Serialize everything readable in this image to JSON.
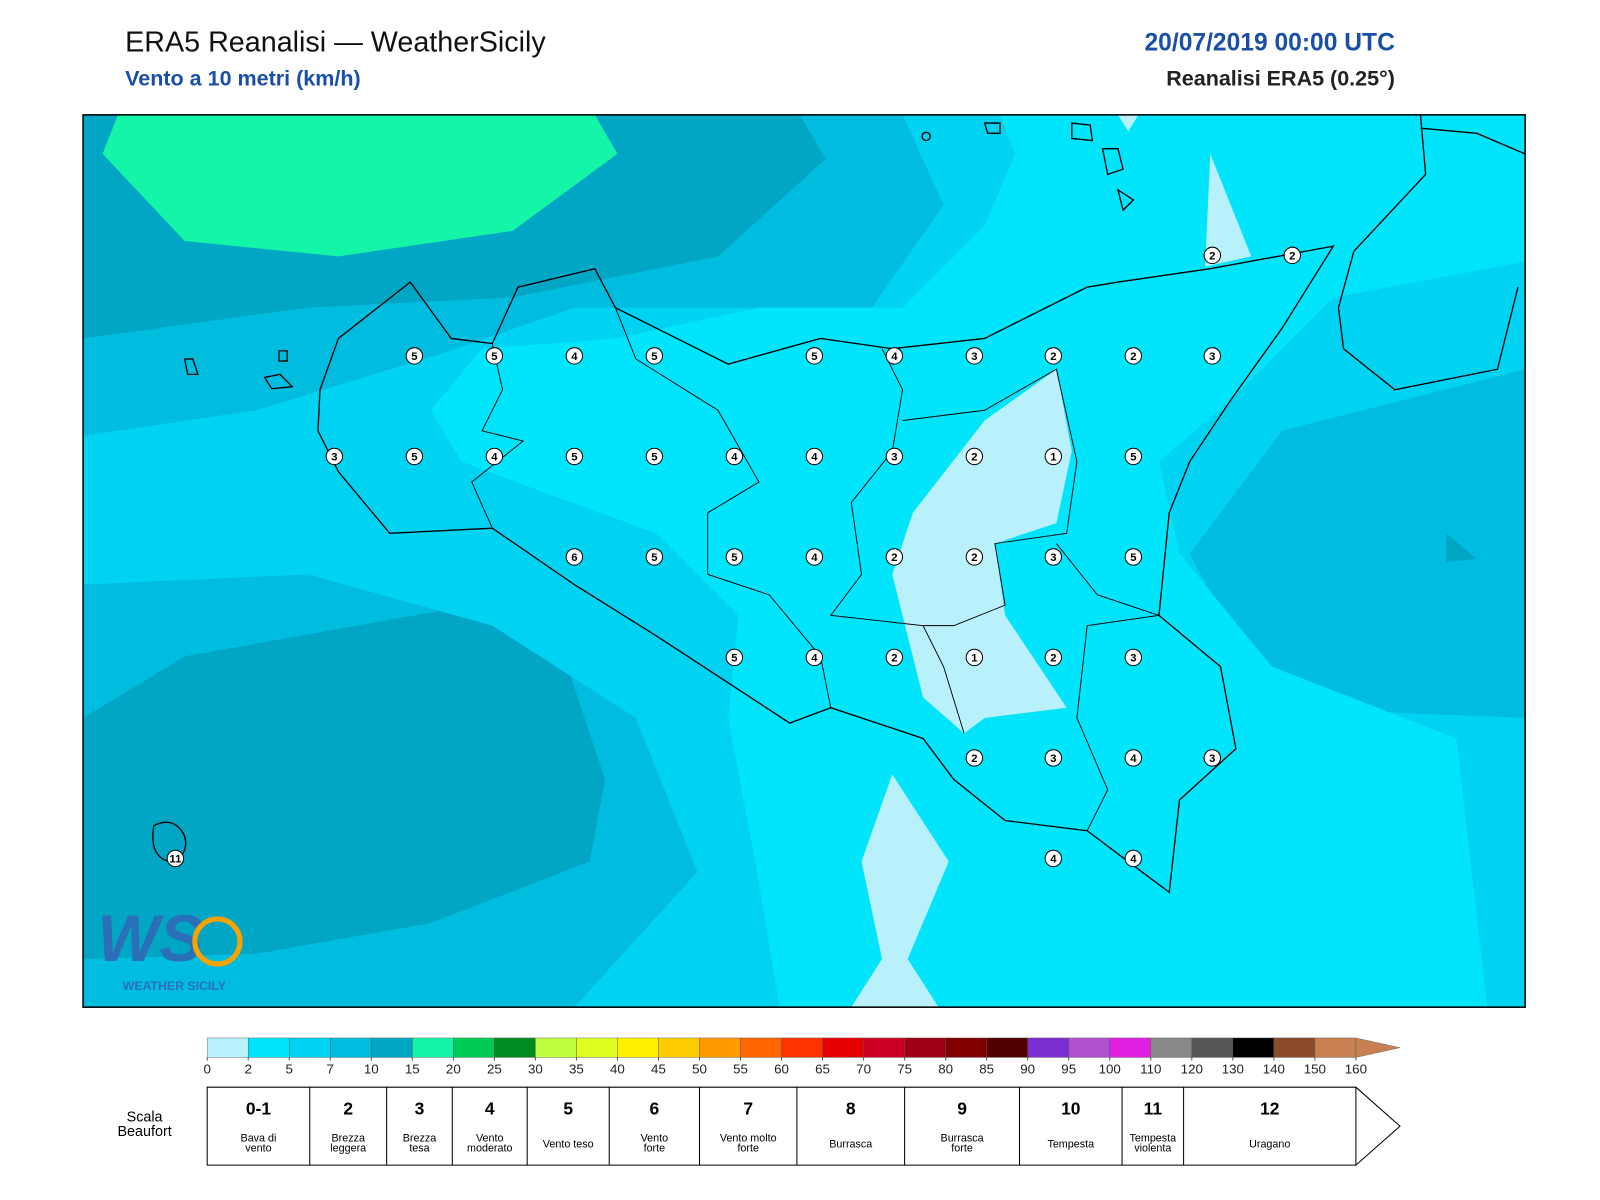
{
  "header": {
    "title": "ERA5 Reanalisi — WeatherSicily",
    "subtitle": "Vento a 10 metri (km/h)",
    "datetime": "20/07/2019 00:00 UTC",
    "source": "Reanalisi ERA5 (0.25°)"
  },
  "stations": [
    2,
    2,
    5,
    5,
    4,
    5,
    5,
    4,
    3,
    2,
    2,
    3,
    3,
    5,
    4,
    5,
    5,
    4,
    4,
    3,
    2,
    1,
    5,
    6,
    5,
    5,
    4,
    2,
    2,
    3,
    5,
    5,
    4,
    2,
    1,
    2,
    3,
    2,
    3,
    4,
    3,
    11,
    4,
    4
  ],
  "logo": {
    "text": "WS",
    "caption": "WEATHER SICILY"
  },
  "colorbar": {
    "ticks": [
      0,
      2,
      5,
      7,
      10,
      15,
      20,
      25,
      30,
      35,
      40,
      45,
      50,
      55,
      60,
      65,
      70,
      75,
      80,
      85,
      90,
      95,
      100,
      110,
      120,
      130,
      140,
      150,
      160
    ],
    "colors": [
      "#b8f0fc",
      "#00e5fc",
      "#00d2f2",
      "#00bde0",
      "#00a6c4",
      "#14f5a8",
      "#00cc55",
      "#008a20",
      "#c0ff40",
      "#e0ff20",
      "#fff000",
      "#ffcc00",
      "#ff9900",
      "#ff6600",
      "#ff3300",
      "#e60000",
      "#cc0025",
      "#a00015",
      "#800000",
      "#500000",
      "#7a30d0",
      "#b050d0",
      "#e020e0",
      "#888888",
      "#555555",
      "#000000",
      "#8b4a2a",
      "#c88050"
    ]
  },
  "beaufort": {
    "label": [
      "Scala",
      "Beaufort"
    ],
    "levels": [
      {
        "number": "0-1",
        "name": [
          "Bava di",
          "vento"
        ]
      },
      {
        "number": 2,
        "name": [
          "Brezza",
          "leggera"
        ]
      },
      {
        "number": 3,
        "name": [
          "Brezza",
          "tesa"
        ]
      },
      {
        "number": 4,
        "name": [
          "Vento",
          "moderato"
        ]
      },
      {
        "number": 5,
        "name": [
          "Vento teso"
        ]
      },
      {
        "number": 6,
        "name": [
          "Vento",
          "forte"
        ]
      },
      {
        "number": 7,
        "name": [
          "Vento molto",
          "forte"
        ]
      },
      {
        "number": 8,
        "name": [
          "Burrasca"
        ]
      },
      {
        "number": 9,
        "name": [
          "Burrasca",
          "forte"
        ]
      },
      {
        "number": 10,
        "name": [
          "Tempesta"
        ]
      },
      {
        "number": 11,
        "name": [
          "Tempesta",
          "violenta"
        ]
      },
      {
        "number": 12,
        "name": [
          "Uragano"
        ]
      }
    ]
  }
}
